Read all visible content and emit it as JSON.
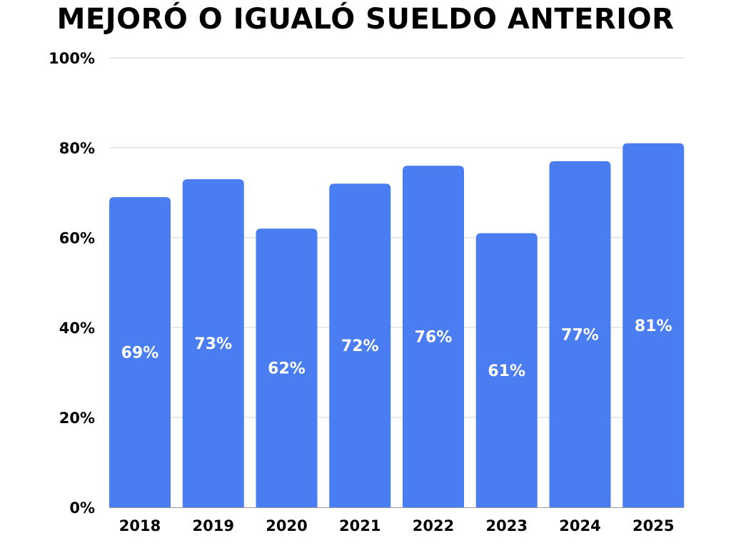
{
  "chart_data": {
    "type": "bar",
    "title": "MEJORÓ O IGUALÓ SUELDO ANTERIOR",
    "xlabel": "",
    "ylabel": "",
    "categories": [
      "2018",
      "2019",
      "2020",
      "2021",
      "2022",
      "2023",
      "2024",
      "2025"
    ],
    "values": [
      69,
      73,
      62,
      72,
      76,
      61,
      77,
      81
    ],
    "data_labels": [
      "69%",
      "73%",
      "62%",
      "72%",
      "76%",
      "61%",
      "77%",
      "81%"
    ],
    "ylim": [
      0,
      100
    ],
    "yticks": [
      0,
      20,
      40,
      60,
      80,
      100
    ],
    "ytick_labels": [
      "0%",
      "20%",
      "40%",
      "60%",
      "80%",
      "100%"
    ],
    "grid": true,
    "legend": "none",
    "colors": {
      "bar": "#4a7cf2",
      "grid": "#d0d0d0",
      "label": "#ffffff",
      "text": "#000000"
    }
  }
}
